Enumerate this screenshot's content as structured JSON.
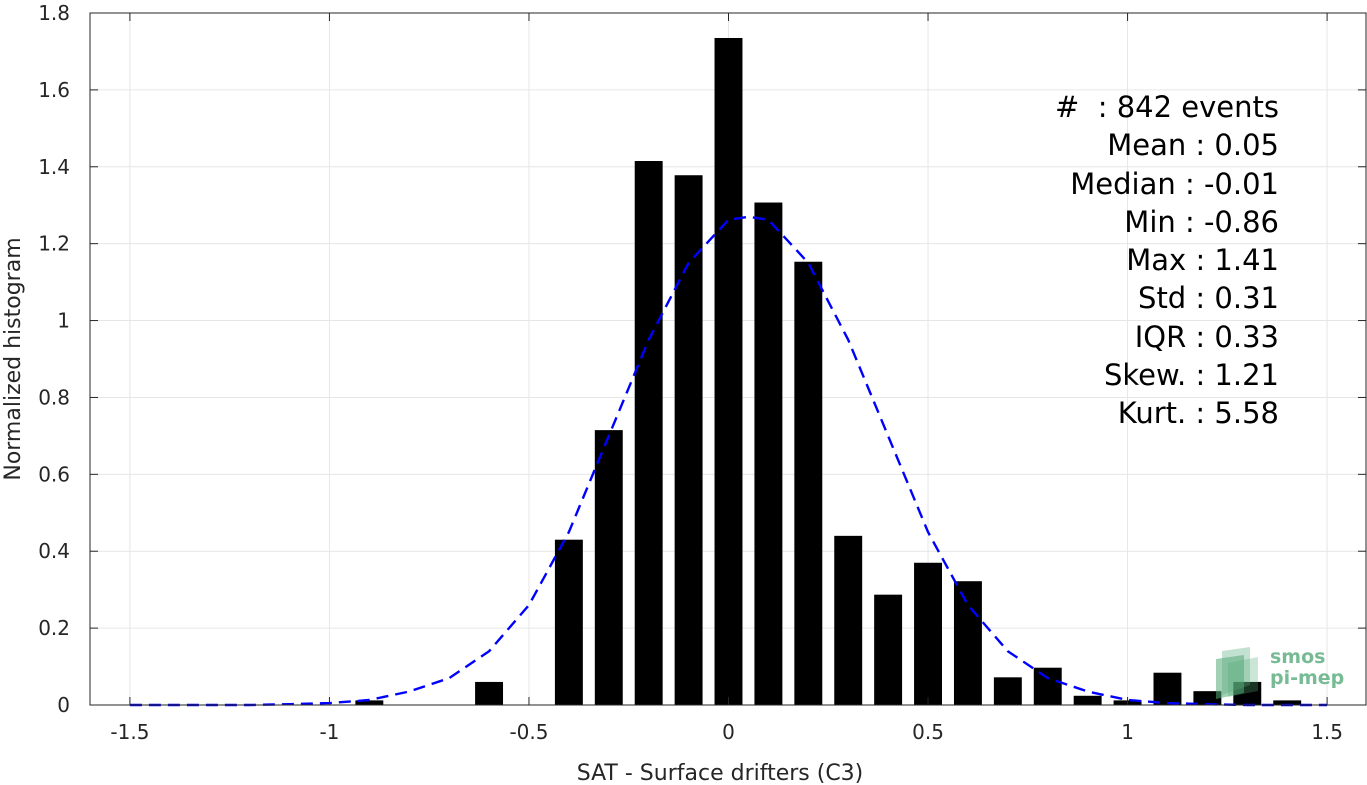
{
  "chart_data": {
    "type": "bar",
    "xlabel": "SAT - Surface drifters (C3)",
    "ylabel": "Normalized histogram",
    "xlim": [
      -1.6,
      1.6
    ],
    "ylim": [
      0,
      1.8
    ],
    "xticks": [
      -1.5,
      -1,
      -0.5,
      0,
      0.5,
      1,
      1.5
    ],
    "xtick_labels": [
      "-1.5",
      "-1",
      "-0.5",
      "0",
      "0.5",
      "1",
      "1.5"
    ],
    "yticks": [
      0,
      0.2,
      0.4,
      0.6,
      0.8,
      1,
      1.2,
      1.4,
      1.6,
      1.8
    ],
    "ytick_labels": [
      "0",
      "0.2",
      "0.4",
      "0.6",
      "0.8",
      "1",
      "1.2",
      "1.4",
      "1.6",
      "1.8"
    ],
    "grid": true,
    "bar_color": "#000000",
    "bar_width": 0.07,
    "bars": [
      {
        "x": -0.9,
        "y": 0.012
      },
      {
        "x": -0.6,
        "y": 0.06
      },
      {
        "x": -0.4,
        "y": 0.43
      },
      {
        "x": -0.3,
        "y": 0.715
      },
      {
        "x": -0.2,
        "y": 1.415
      },
      {
        "x": -0.1,
        "y": 1.378
      },
      {
        "x": 0.0,
        "y": 1.735
      },
      {
        "x": 0.1,
        "y": 1.307
      },
      {
        "x": 0.2,
        "y": 1.153
      },
      {
        "x": 0.3,
        "y": 0.44
      },
      {
        "x": 0.4,
        "y": 0.287
      },
      {
        "x": 0.5,
        "y": 0.37
      },
      {
        "x": 0.6,
        "y": 0.322
      },
      {
        "x": 0.7,
        "y": 0.072
      },
      {
        "x": 0.8,
        "y": 0.097
      },
      {
        "x": 0.9,
        "y": 0.024
      },
      {
        "x": 1.0,
        "y": 0.012
      },
      {
        "x": 1.1,
        "y": 0.084
      },
      {
        "x": 1.2,
        "y": 0.036
      },
      {
        "x": 1.3,
        "y": 0.06
      },
      {
        "x": 1.4,
        "y": 0.012
      }
    ],
    "fit_curve": {
      "style": "dashed",
      "color": "#0000ff",
      "x": [
        -1.5,
        -1.4,
        -1.3,
        -1.2,
        -1.1,
        -1.0,
        -0.9,
        -0.8,
        -0.7,
        -0.6,
        -0.5,
        -0.4,
        -0.3,
        -0.2,
        -0.1,
        0.0,
        0.05,
        0.1,
        0.2,
        0.3,
        0.4,
        0.5,
        0.6,
        0.7,
        0.8,
        0.9,
        1.0,
        1.1,
        1.2,
        1.3,
        1.4,
        1.5
      ],
      "y": [
        0.0,
        0.0,
        0.0,
        0.0,
        0.002,
        0.005,
        0.013,
        0.035,
        0.07,
        0.14,
        0.26,
        0.45,
        0.7,
        0.95,
        1.15,
        1.262,
        1.27,
        1.262,
        1.15,
        0.95,
        0.7,
        0.45,
        0.26,
        0.14,
        0.07,
        0.035,
        0.013,
        0.005,
        0.002,
        0.0,
        0.0,
        0.0
      ]
    }
  },
  "stats": [
    "#  : 842 events",
    "Mean : 0.05",
    "Median : -0.01",
    "Min : -0.86",
    "Max : 1.41",
    "Std : 0.31",
    "IQR : 0.33",
    "Skew. : 1.21",
    "Kurt. : 5.58"
  ],
  "logo": {
    "line1": "smos",
    "line2": "pi-mep",
    "color": "#54aa78"
  }
}
